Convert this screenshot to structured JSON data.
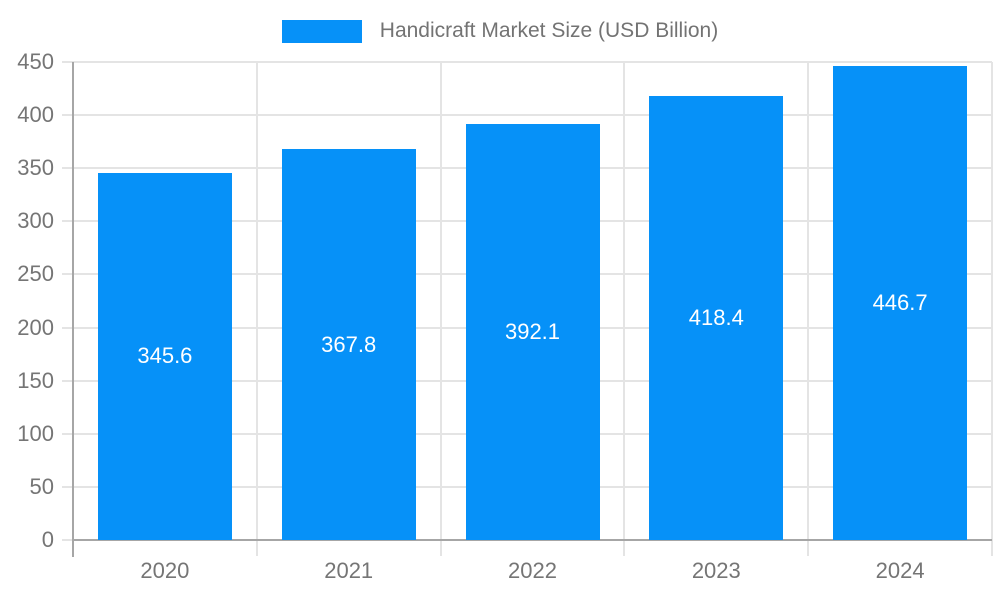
{
  "chart_data": {
    "type": "bar",
    "title": "Handicraft Market Size (USD Billion)",
    "categories": [
      "2020",
      "2021",
      "2022",
      "2023",
      "2024"
    ],
    "values": [
      345.6,
      367.8,
      392.1,
      418.4,
      446.7
    ],
    "value_labels": [
      "345.6",
      "367.8",
      "392.1",
      "418.4",
      "446.7"
    ],
    "series": [
      {
        "name": "Handicraft Market Size (USD Billion)",
        "values": [
          345.6,
          367.8,
          392.1,
          418.4,
          446.7
        ]
      }
    ],
    "xlabel": "",
    "ylabel": "",
    "ylim": [
      0,
      450
    ],
    "y_ticks": [
      0,
      50,
      100,
      150,
      200,
      250,
      300,
      350,
      400,
      450
    ],
    "grid": true,
    "legend_position": "top-center",
    "colors": {
      "bar": "#0691f8",
      "axis_line": "#a6a6a6",
      "gridline": "#e4e4e4",
      "tick_label": "#757575",
      "legend_text": "#737373",
      "bar_label": "#ffffff",
      "background": "#ffffff"
    }
  }
}
